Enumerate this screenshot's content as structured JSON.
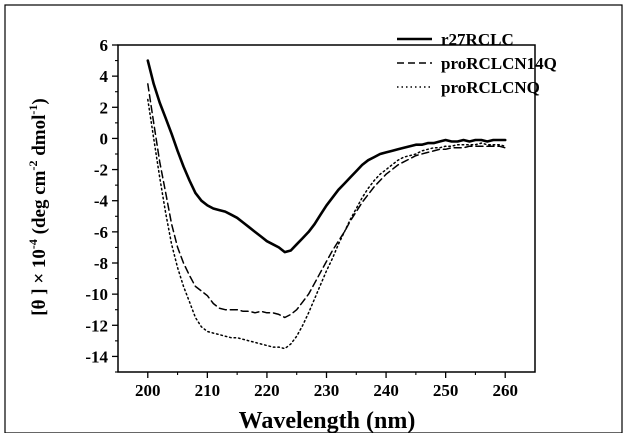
{
  "chart_data": {
    "type": "line",
    "title": "",
    "xlabel": "Wavelength (nm)",
    "ylabel_parts": {
      "open": "[θ ] × 10",
      "exp1": "-4",
      "mid": " (deg cm",
      "exp2": "-2",
      "mid2": " dmol",
      "exp3": "-1",
      "close": ")"
    },
    "xlim": [
      195,
      265
    ],
    "ylim": [
      -15,
      6
    ],
    "xticks": [
      200,
      210,
      220,
      230,
      240,
      250,
      260
    ],
    "yticks": [
      6,
      4,
      2,
      0,
      -2,
      -4,
      -6,
      -8,
      -10,
      -12,
      -14
    ],
    "grid": false,
    "legend_position": "top-right",
    "series": [
      {
        "name": "r27RCLC",
        "style": "solid",
        "x": [
          200,
          201,
          202,
          203,
          204,
          205,
          206,
          207,
          208,
          209,
          210,
          211,
          212,
          213,
          214,
          215,
          216,
          217,
          218,
          219,
          220,
          221,
          222,
          223,
          224,
          225,
          226,
          227,
          228,
          229,
          230,
          231,
          232,
          233,
          234,
          235,
          236,
          237,
          238,
          239,
          240,
          241,
          242,
          243,
          244,
          245,
          246,
          247,
          248,
          249,
          250,
          251,
          252,
          253,
          254,
          255,
          256,
          257,
          258,
          259,
          260
        ],
        "y": [
          5.0,
          3.5,
          2.3,
          1.3,
          0.3,
          -0.8,
          -1.8,
          -2.7,
          -3.5,
          -4.0,
          -4.3,
          -4.5,
          -4.6,
          -4.7,
          -4.9,
          -5.1,
          -5.4,
          -5.7,
          -6.0,
          -6.3,
          -6.6,
          -6.8,
          -7.0,
          -7.3,
          -7.2,
          -6.8,
          -6.4,
          -6.0,
          -5.5,
          -4.9,
          -4.3,
          -3.8,
          -3.3,
          -2.9,
          -2.5,
          -2.1,
          -1.7,
          -1.4,
          -1.2,
          -1.0,
          -0.9,
          -0.8,
          -0.7,
          -0.6,
          -0.5,
          -0.4,
          -0.4,
          -0.3,
          -0.3,
          -0.2,
          -0.1,
          -0.2,
          -0.2,
          -0.1,
          -0.2,
          -0.1,
          -0.1,
          -0.2,
          -0.1,
          -0.1,
          -0.1
        ]
      },
      {
        "name": "proRCLCN14Q",
        "style": "dashed",
        "x": [
          200,
          201,
          202,
          203,
          204,
          205,
          206,
          207,
          208,
          209,
          210,
          211,
          212,
          213,
          214,
          215,
          216,
          217,
          218,
          219,
          220,
          221,
          222,
          223,
          224,
          225,
          226,
          227,
          228,
          229,
          230,
          231,
          232,
          233,
          234,
          235,
          236,
          237,
          238,
          239,
          240,
          241,
          242,
          243,
          244,
          245,
          246,
          247,
          248,
          249,
          250,
          251,
          252,
          253,
          254,
          255,
          256,
          257,
          258,
          259,
          260
        ],
        "y": [
          3.5,
          1.0,
          -1.5,
          -3.5,
          -5.5,
          -7.0,
          -8.0,
          -8.8,
          -9.5,
          -9.8,
          -10.1,
          -10.6,
          -10.9,
          -11.0,
          -11.0,
          -11.0,
          -11.1,
          -11.1,
          -11.2,
          -11.1,
          -11.2,
          -11.2,
          -11.3,
          -11.5,
          -11.3,
          -11.0,
          -10.5,
          -10.0,
          -9.3,
          -8.6,
          -7.9,
          -7.2,
          -6.6,
          -6.0,
          -5.3,
          -4.7,
          -4.1,
          -3.6,
          -3.1,
          -2.7,
          -2.3,
          -2.0,
          -1.7,
          -1.5,
          -1.3,
          -1.1,
          -1.0,
          -0.9,
          -0.8,
          -0.7,
          -0.7,
          -0.6,
          -0.6,
          -0.6,
          -0.5,
          -0.5,
          -0.5,
          -0.5,
          -0.5,
          -0.5,
          -0.6
        ]
      },
      {
        "name": "proRCLCNQ",
        "style": "dotted",
        "x": [
          200,
          201,
          202,
          203,
          204,
          205,
          206,
          207,
          208,
          209,
          210,
          211,
          212,
          213,
          214,
          215,
          216,
          217,
          218,
          219,
          220,
          221,
          222,
          223,
          224,
          225,
          226,
          227,
          228,
          229,
          230,
          231,
          232,
          233,
          234,
          235,
          236,
          237,
          238,
          239,
          240,
          241,
          242,
          243,
          244,
          245,
          246,
          247,
          248,
          249,
          250,
          251,
          252,
          253,
          254,
          255,
          256,
          257,
          258,
          259,
          260
        ],
        "y": [
          2.5,
          0.0,
          -2.5,
          -4.8,
          -6.8,
          -8.3,
          -9.5,
          -10.5,
          -11.5,
          -12.1,
          -12.4,
          -12.5,
          -12.6,
          -12.7,
          -12.8,
          -12.8,
          -12.9,
          -13.0,
          -13.1,
          -13.2,
          -13.3,
          -13.4,
          -13.4,
          -13.5,
          -13.2,
          -12.7,
          -12.0,
          -11.2,
          -10.3,
          -9.4,
          -8.5,
          -7.7,
          -6.8,
          -6.0,
          -5.2,
          -4.5,
          -3.8,
          -3.2,
          -2.7,
          -2.3,
          -2.0,
          -1.7,
          -1.4,
          -1.2,
          -1.1,
          -1.0,
          -0.8,
          -0.7,
          -0.6,
          -0.6,
          -0.5,
          -0.5,
          -0.4,
          -0.4,
          -0.4,
          -0.4,
          -0.3,
          -0.4,
          -0.4,
          -0.4,
          -0.5
        ]
      }
    ]
  }
}
